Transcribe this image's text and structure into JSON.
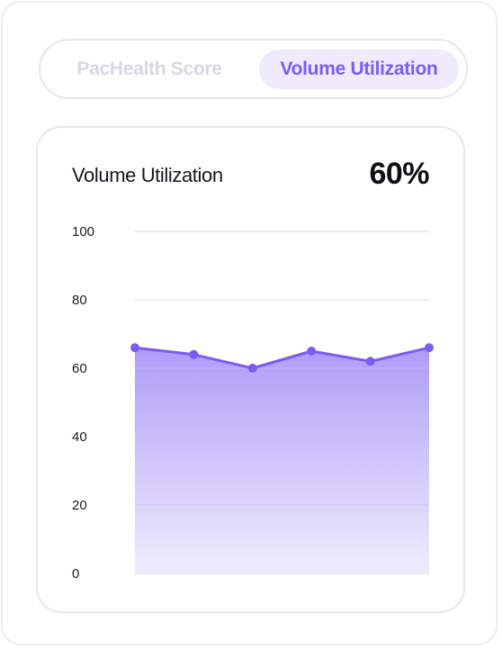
{
  "tabs": {
    "items": [
      {
        "label": "PacHealth Score",
        "active": false
      },
      {
        "label": "Volume Utilization",
        "active": true
      }
    ]
  },
  "card": {
    "title": "Volume Utilization",
    "value": "60%"
  },
  "colors": {
    "accent": "#7b5cf0",
    "accent_fill": "#a996f7",
    "tab_active_bg": "#efebfd",
    "tab_inactive_text": "#d8d7e2",
    "grid": "#e4e4ea"
  },
  "chart_data": {
    "type": "area",
    "title": "Volume Utilization",
    "x": [
      1,
      2,
      3,
      4,
      5,
      6
    ],
    "series": [
      {
        "values": [
          66,
          64,
          60,
          65,
          62,
          66
        ]
      }
    ],
    "ylim": [
      0,
      100
    ],
    "yticks": [
      0,
      20,
      40,
      60,
      80,
      100
    ],
    "grid": true,
    "markers": true
  }
}
